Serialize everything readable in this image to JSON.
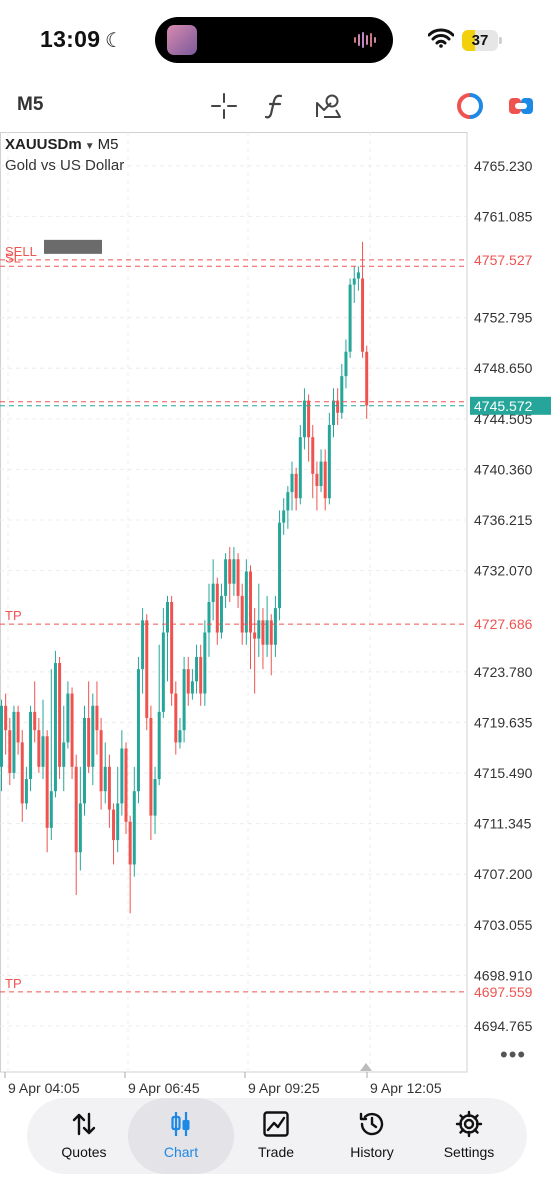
{
  "status_bar": {
    "time": "13:09",
    "battery": "37",
    "battery_level": 0.37
  },
  "toolbar": {
    "timeframe": "M5"
  },
  "chart_header": {
    "symbol": "XAUUSDm",
    "timeframe": "M5",
    "name": "Gold vs US Dollar"
  },
  "colors": {
    "bull": "#26a69a",
    "bear": "#ef5350",
    "sell_line": "#ef5350",
    "bid_line": "#26a69a"
  },
  "chart_data": {
    "type": "candlestick",
    "price_axis": [
      "4765.230",
      "4761.085",
      "4757.527",
      "4752.795",
      "4748.650",
      "4745.572",
      "4744.505",
      "4740.360",
      "4736.215",
      "4732.070",
      "4727.686",
      "4723.780",
      "4719.635",
      "4715.490",
      "4711.345",
      "4707.200",
      "4703.055",
      "4698.910",
      "4697.559",
      "4694.765"
    ],
    "time_axis": [
      "9 Apr 04:05",
      "9 Apr 06:45",
      "9 Apr 09:25",
      "9 Apr 12:05"
    ],
    "ylim": [
      4691.0,
      4768.0
    ],
    "lines": [
      {
        "label": "SELL",
        "price": 4757.527,
        "color": "#ef5350",
        "tag": "4757.527"
      },
      {
        "label": "SL",
        "price": 4757.0,
        "color": "#ef5350",
        "tag": ""
      },
      {
        "label": "",
        "price": 4745.9,
        "color": "#ef5350",
        "tag": ""
      },
      {
        "label": "",
        "price": 4745.572,
        "color": "#26a69a",
        "tag": "4745.572"
      },
      {
        "label": "TP",
        "price": 4727.686,
        "color": "#ef5350",
        "tag": "4727.686"
      },
      {
        "label": "TP",
        "price": 4697.559,
        "color": "#ef5350",
        "tag": "4697.559"
      }
    ],
    "candles": [
      [
        4716.0,
        4721.0,
        4714.0,
        4721.5
      ],
      [
        4721.0,
        4719.0,
        4717.0,
        4722.0
      ],
      [
        4719.0,
        4715.5,
        4714.5,
        4720.0
      ],
      [
        4715.5,
        4720.5,
        4715.0,
        4721.0
      ],
      [
        4720.5,
        4718.0,
        4717.0,
        4721.0
      ],
      [
        4718.0,
        4713.0,
        4711.5,
        4719.0
      ],
      [
        4713.0,
        4715.0,
        4712.5,
        4716.0
      ],
      [
        4715.0,
        4720.5,
        4714.0,
        4721.0
      ],
      [
        4720.5,
        4719.0,
        4718.0,
        4723.0
      ],
      [
        4719.0,
        4716.0,
        4715.5,
        4720.0
      ],
      [
        4716.0,
        4718.5,
        4715.0,
        4721.5
      ],
      [
        4718.5,
        4711.0,
        4709.0,
        4719.0
      ],
      [
        4711.0,
        4714.0,
        4710.0,
        4724.0
      ],
      [
        4714.0,
        4724.5,
        4713.5,
        4725.5
      ],
      [
        4724.5,
        4716.0,
        4715.0,
        4725.0
      ],
      [
        4716.0,
        4718.0,
        4714.0,
        4721.0
      ],
      [
        4718.0,
        4722.0,
        4717.5,
        4723.0
      ],
      [
        4722.0,
        4716.0,
        4715.0,
        4722.5
      ],
      [
        4716.0,
        4709.0,
        4705.5,
        4717.0
      ],
      [
        4709.0,
        4713.0,
        4707.5,
        4716.0
      ],
      [
        4713.0,
        4720.0,
        4712.0,
        4721.0
      ],
      [
        4720.0,
        4716.0,
        4715.5,
        4723.0
      ],
      [
        4716.0,
        4721.0,
        4714.5,
        4722.0
      ],
      [
        4721.0,
        4719.0,
        4717.0,
        4723.0
      ],
      [
        4719.0,
        4714.0,
        4712.5,
        4720.0
      ],
      [
        4714.0,
        4716.0,
        4713.0,
        4718.0
      ],
      [
        4716.0,
        4712.5,
        4711.0,
        4717.0
      ],
      [
        4712.5,
        4710.0,
        4708.0,
        4713.0
      ],
      [
        4710.0,
        4713.0,
        4709.0,
        4716.0
      ],
      [
        4713.0,
        4717.5,
        4712.0,
        4719.0
      ],
      [
        4717.5,
        4711.5,
        4710.5,
        4718.0
      ],
      [
        4711.5,
        4708.0,
        4704.0,
        4712.0
      ],
      [
        4708.0,
        4714.0,
        4707.0,
        4716.0
      ],
      [
        4714.0,
        4724.0,
        4713.0,
        4725.0
      ],
      [
        4724.0,
        4728.0,
        4722.0,
        4729.0
      ],
      [
        4728.0,
        4720.0,
        4719.0,
        4728.5
      ],
      [
        4720.0,
        4712.0,
        4710.0,
        4721.0
      ],
      [
        4712.0,
        4715.0,
        4710.5,
        4716.0
      ],
      [
        4715.0,
        4720.5,
        4714.5,
        4726.0
      ],
      [
        4720.5,
        4727.0,
        4720.0,
        4729.0
      ],
      [
        4727.0,
        4729.5,
        4723.0,
        4730.0
      ],
      [
        4729.5,
        4722.0,
        4721.0,
        4730.0
      ],
      [
        4722.0,
        4718.0,
        4717.0,
        4723.0
      ],
      [
        4718.0,
        4719.0,
        4717.5,
        4720.0
      ],
      [
        4719.0,
        4724.0,
        4718.0,
        4725.0
      ],
      [
        4724.0,
        4722.0,
        4721.0,
        4725.0
      ],
      [
        4722.0,
        4723.0,
        4721.5,
        4724.0
      ],
      [
        4723.0,
        4725.0,
        4722.0,
        4726.0
      ],
      [
        4725.0,
        4722.0,
        4721.0,
        4726.0
      ],
      [
        4722.0,
        4727.0,
        4721.0,
        4728.0
      ],
      [
        4727.0,
        4729.5,
        4725.0,
        4731.0
      ],
      [
        4729.5,
        4731.0,
        4728.0,
        4733.0
      ],
      [
        4731.0,
        4727.0,
        4726.0,
        4731.5
      ],
      [
        4727.0,
        4730.0,
        4726.5,
        4731.0
      ],
      [
        4730.0,
        4733.0,
        4729.0,
        4733.5
      ],
      [
        4733.0,
        4731.0,
        4729.5,
        4734.0
      ],
      [
        4731.0,
        4733.0,
        4730.0,
        4734.0
      ],
      [
        4733.0,
        4730.0,
        4729.0,
        4733.5
      ],
      [
        4730.0,
        4727.0,
        4726.0,
        4731.0
      ],
      [
        4727.0,
        4732.0,
        4726.0,
        4733.0
      ],
      [
        4732.0,
        4727.0,
        4724.0,
        4732.5
      ],
      [
        4727.0,
        4726.5,
        4722.0,
        4729.0
      ],
      [
        4726.5,
        4728.0,
        4725.0,
        4731.0
      ],
      [
        4728.0,
        4726.0,
        4724.0,
        4729.0
      ],
      [
        4726.0,
        4728.0,
        4725.0,
        4730.0
      ],
      [
        4728.0,
        4726.0,
        4723.5,
        4728.5
      ],
      [
        4726.0,
        4729.0,
        4725.0,
        4730.0
      ],
      [
        4729.0,
        4736.0,
        4728.0,
        4737.0
      ],
      [
        4736.0,
        4737.0,
        4735.0,
        4738.0
      ],
      [
        4737.0,
        4738.5,
        4735.5,
        4739.0
      ],
      [
        4738.5,
        4740.0,
        4737.0,
        4741.0
      ],
      [
        4740.0,
        4738.0,
        4737.0,
        4740.5
      ],
      [
        4738.0,
        4743.0,
        4737.5,
        4744.0
      ],
      [
        4743.0,
        4746.0,
        4742.0,
        4747.0
      ],
      [
        4746.0,
        4743.0,
        4741.0,
        4746.5
      ],
      [
        4743.0,
        4740.0,
        4738.0,
        4744.0
      ],
      [
        4740.0,
        4739.0,
        4737.0,
        4741.0
      ],
      [
        4739.0,
        4741.0,
        4738.5,
        4742.0
      ],
      [
        4741.0,
        4738.0,
        4737.0,
        4742.0
      ],
      [
        4738.0,
        4744.0,
        4737.5,
        4745.0
      ],
      [
        4744.0,
        4746.0,
        4743.0,
        4747.0
      ],
      [
        4746.0,
        4745.0,
        4744.0,
        4747.0
      ],
      [
        4745.0,
        4748.0,
        4744.5,
        4749.0
      ],
      [
        4748.0,
        4750.0,
        4747.0,
        4751.0
      ],
      [
        4750.0,
        4755.5,
        4749.5,
        4756.0
      ],
      [
        4755.5,
        4756.0,
        4754.0,
        4757.0
      ],
      [
        4756.0,
        4756.5,
        4755.0,
        4757.0
      ],
      [
        4756.0,
        4750.0,
        4749.5,
        4759.0
      ],
      [
        4750.0,
        4745.6,
        4744.5,
        4750.5
      ]
    ]
  },
  "nav": [
    {
      "id": "quotes",
      "label": "Quotes",
      "icon": "quotes-arrows-icon",
      "active": false
    },
    {
      "id": "chart",
      "label": "Chart",
      "icon": "candlestick-chart-icon",
      "active": true
    },
    {
      "id": "trade",
      "label": "Trade",
      "icon": "trade-chart-icon",
      "active": false
    },
    {
      "id": "history",
      "label": "History",
      "icon": "history-clock-icon",
      "active": false
    },
    {
      "id": "settings",
      "label": "Settings",
      "icon": "settings-gear-icon",
      "active": false
    }
  ]
}
